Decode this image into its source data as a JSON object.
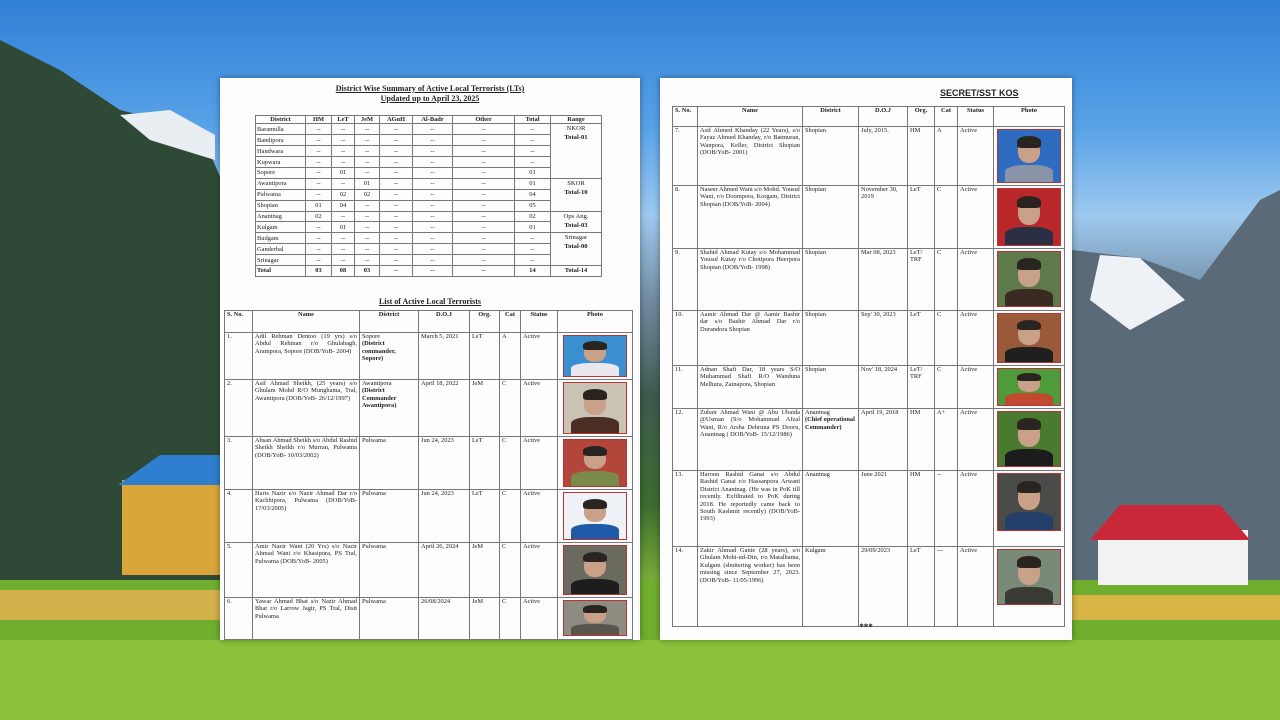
{
  "summary": {
    "title": "District Wise Summary of Active Local Terrorists (LTs)",
    "subtitle": "Updated up to  April 23, 2025",
    "columns": [
      "District",
      "HM",
      "LeT",
      "JeM",
      "AGuH",
      "Al-Badr",
      "Other",
      "Total",
      "Range"
    ],
    "rows": [
      [
        "Baramulla",
        "--",
        "--",
        "--",
        "--",
        "--",
        "--",
        "--"
      ],
      [
        "Bandipora",
        "--",
        "--",
        "--",
        "--",
        "--",
        "--",
        "--"
      ],
      [
        "Handwara",
        "--",
        "--",
        "--",
        "--",
        "--",
        "--",
        "--"
      ],
      [
        "Kupwara",
        "--",
        "--",
        "--",
        "--",
        "--",
        "--",
        "--"
      ],
      [
        "Sopore",
        "--",
        "01",
        "--",
        "--",
        "--",
        "--",
        "01"
      ],
      [
        "Awantipora",
        "--",
        "--",
        "01",
        "--",
        "--",
        "--",
        "01"
      ],
      [
        "Pulwama",
        "--",
        "02",
        "02",
        "--",
        "--",
        "--",
        "04"
      ],
      [
        "Shopian",
        "01",
        "04",
        "--",
        "--",
        "--",
        "--",
        "05"
      ],
      [
        "Anantnag",
        "02",
        "--",
        "--",
        "--",
        "--",
        "--",
        "02"
      ],
      [
        "Kulgam",
        "--",
        "01",
        "--",
        "--",
        "--",
        "--",
        "01"
      ],
      [
        "Budgam",
        "--",
        "--",
        "--",
        "--",
        "--",
        "--",
        "--"
      ],
      [
        "Ganderbal",
        "--",
        "--",
        "--",
        "--",
        "--",
        "--",
        "--"
      ],
      [
        "Srinagar",
        "--",
        "--",
        "--",
        "--",
        "--",
        "--",
        "--"
      ]
    ],
    "ranges": [
      {
        "name": "NKOR",
        "total": "Total-01",
        "span": 5
      },
      {
        "name": "SKOR",
        "total": "Total-10",
        "span": 3
      },
      {
        "name": "Ops Ang.",
        "total": "Total-03",
        "span": 2
      },
      {
        "name": "Srinagar",
        "total": "Total-00",
        "span": 3
      }
    ],
    "total_row": [
      "Total",
      "03",
      "08",
      "03",
      "--",
      "--",
      "--",
      "14",
      "Total-14"
    ]
  },
  "list": {
    "title": "List of Active Local Terrorists",
    "columns": [
      "S. No.",
      "Name",
      "District",
      "D.O.J",
      "Org.",
      "Cat",
      "Status",
      "Photo"
    ],
    "rows_left": [
      {
        "sno": "1.",
        "name": "Adil Rehman Dentoo (19 yrs) s/o Abdul Rehman r/o Ghulabagh, Arampora, Sopore (DOB/YoB- 2004)",
        "district": "Sopore",
        "district_note": "(District commander, Sopore)",
        "doj": "March 5, 2021",
        "org": "LeT",
        "cat": "A",
        "status": "Active",
        "photo_bg": "#3a8fd0",
        "photo_body": "#e8e8ee"
      },
      {
        "sno": "2.",
        "name": "Asif Ahmad Sheikh, (25 years) s/o Ghulam Mohd R/O Munghama, Tral, Awantipora (DOB/YoB- 26/12/1997)",
        "district": "Awantipora",
        "district_note": "(District Commander Awantipora)",
        "doj": "April 18, 2022",
        "org": "JeM",
        "cat": "C",
        "status": "Active",
        "photo_bg": "#c9c2b5",
        "photo_body": "#4a2e22"
      },
      {
        "sno": "3.",
        "name": "Ahsan Ahmad Sheikh s/o Abdul Rashid Sheikh Sheikh r/o Murran, Pulwama (DOB/YoB- 10/03/2002)",
        "district": "Pulwama",
        "district_note": "",
        "doj": "Jun 24, 2023",
        "org": "LeT",
        "cat": "C",
        "status": "Active",
        "photo_bg": "#b2463a",
        "photo_body": "#7b8a4a"
      },
      {
        "sno": "4.",
        "name": "Haris Nazir s/o Nazir Ahmad Dar r/o Kachhipora, Pulwama (DOB/YoB- 17/03/2005)",
        "district": "Pulwama",
        "district_note": "",
        "doj": "Jun 24, 2023",
        "org": "LeT",
        "cat": "C",
        "status": "Active",
        "photo_bg": "#eef2f6",
        "photo_body": "#1e5aa8"
      },
      {
        "sno": "5.",
        "name": "Amir Nazir Wani (20 Yrs) s/o Nazir Ahmad Wani r/o Khasipora, PS Tral, Pulwama (DOB/YoB- 2005)",
        "district": "Pulwama",
        "district_note": "",
        "doj": "April 26, 2024",
        "org": "JeM",
        "cat": "C",
        "status": "Active",
        "photo_bg": "#6a6a5e",
        "photo_body": "#1d1d1d"
      },
      {
        "sno": "6.",
        "name": "Yawar Ahmad Bhat s/o Nazir Ahmad Bhat r/o Larrow Jagir, PS Tral, Distt Pulwama",
        "district": "Pulwama",
        "district_note": "",
        "doj": "26/08/2024",
        "org": "JeM",
        "cat": "C",
        "status": "Active",
        "photo_bg": "#8e8b80",
        "photo_body": "#5a554a"
      }
    ],
    "rows_right": [
      {
        "sno": "7.",
        "name": "Asif Ahmed Khanday (22 Years), s/o Fayaz Ahmed Khanday, r/o Batmuran, Wanpora, Keller, District Shopian (DOB/YoB- 2001)",
        "district": "Shopian",
        "district_note": "",
        "doj": "July, 2015.",
        "org": "HM",
        "cat": "A",
        "status": "Active",
        "photo_bg": "#2f6cc0",
        "photo_body": "#8a94a8"
      },
      {
        "sno": "8.",
        "name": "Naseer Ahmed Wani s/o Mohd. Yousuf Wani, r/o Doompora, Korgam, District Shopian (DOB/YoB- 2004)",
        "district": "Shopian",
        "district_note": "",
        "doj": "November 30, 2019",
        "org": "LeT",
        "cat": "C",
        "status": "Active",
        "photo_bg": "#b8282a",
        "photo_body": "#2a2f45"
      },
      {
        "sno": "9.",
        "name": "Shahid Ahmad Kutay s/o Mohammad Yousuf Kutay r/o Chotipora Heerpora Shopian (DOB/YoB- 1998)",
        "district": "Shopian",
        "district_note": "",
        "doj": "Mar 08, 2023",
        "org": "LeT/ TRF",
        "cat": "C",
        "status": "Active",
        "photo_bg": "#5e7a4a",
        "photo_body": "#3a2a22"
      },
      {
        "sno": "10.",
        "name": "Aamir Ahmad Dar @ Aamir Bashir dar s/o Bashir Ahmad Dar r/o Durandora Shopian",
        "district": "Shopian",
        "district_note": "",
        "doj": "Sep' 30, 2023",
        "org": "LeT",
        "cat": "C",
        "status": "Active",
        "photo_bg": "#9a5a3a",
        "photo_body": "#1f1f1f"
      },
      {
        "sno": "11.",
        "name": "Adnan Shafi Dar, 18 years S/O Muhammad Shafi R/O Wanduna Melhura, Zainapora, Shopian",
        "district": "Shopian",
        "district_note": "",
        "doj": "Nov' 18, 2024",
        "org": "LeT/ TRF",
        "cat": "C",
        "status": "Active",
        "photo_bg": "#4f9a3a",
        "photo_body": "#c04a30"
      },
      {
        "sno": "12.",
        "name": "Zubair Ahmad Wani @ Abu Ubaida @Usman (S/o Mohammad Afzal Wani, R/o Arsha Dehruna PS Dooru, Anantnag ( DOB/YoB- 15/12/1986)",
        "district": "Anantnag",
        "district_note": "(Chief operational Commander)",
        "doj": "April 19, 2018",
        "org": "HM",
        "cat": "A+",
        "status": "Active",
        "photo_bg": "#4a7a30",
        "photo_body": "#1c1c1c"
      },
      {
        "sno": "13.",
        "name": "Haroon Rashid Ganai s/o Abdul Rashid Ganai r/o Hassanpora Arwani District Anantnag. (He was in PoK till recently. Exfiltrated to PoK during 2018. He reportedly came back to South Kashmir recently) (DOB/YoB- 1993)",
        "district": "Anantnag",
        "district_note": "",
        "doj": "June 2021",
        "org": "HM",
        "cat": "--",
        "status": "Active",
        "photo_bg": "#4a4a48",
        "photo_body": "#24406a"
      },
      {
        "sno": "14.",
        "name": "Zakir Ahmad Ganie (28 years), s/o Ghulam Mohi-ud-Din, r/o Matalhama, Kulgam (shuttering worker) has been missing since September 27, 2023. (DOB/YoB- 11/05/1996)",
        "district": "Kulgam",
        "district_note": "",
        "doj": "29/09/2023",
        "org": "LeT",
        "cat": "---",
        "status": "Active",
        "photo_bg": "#7a8a78",
        "photo_body": "#3a3a34"
      }
    ]
  },
  "classification": "SECRET/SST KOS",
  "end_mark": "***"
}
